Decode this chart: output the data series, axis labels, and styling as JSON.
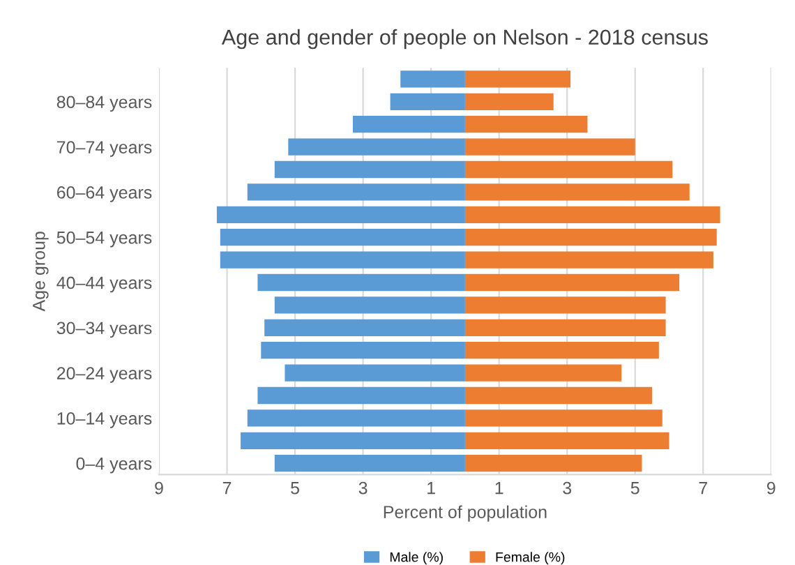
{
  "chart_data": {
    "type": "bar",
    "orientation": "horizontal",
    "stacked": true,
    "title": "Age and gender of people on Nelson - 2018 census",
    "xlabel": "Percent of population",
    "ylabel": "Age group",
    "categories": [
      null,
      "80–84 years",
      null,
      "70–74 years",
      null,
      "60–64 years",
      null,
      "50–54 years",
      null,
      "40–44 years",
      null,
      "30–34 years",
      null,
      "20–24 years",
      null,
      "10–14 years",
      null,
      "0–4 years"
    ],
    "series": [
      {
        "name": "Male (%)",
        "color": "#5b9bd5",
        "values": [
          -1.9,
          -2.2,
          -3.3,
          -5.2,
          -5.6,
          -6.4,
          -7.3,
          -7.2,
          -7.2,
          -6.1,
          -5.6,
          -5.9,
          -6.0,
          -5.3,
          -6.1,
          -6.4,
          -6.6,
          -5.6
        ]
      },
      {
        "name": "Female (%)",
        "color": "#ed7d31",
        "values": [
          3.1,
          2.6,
          3.6,
          5.0,
          6.1,
          6.6,
          7.5,
          7.4,
          7.3,
          6.3,
          5.9,
          5.9,
          5.7,
          4.6,
          5.5,
          5.8,
          6.0,
          5.2
        ]
      }
    ],
    "xlim": [
      -9,
      9
    ],
    "xticks": [
      {
        "value": -9,
        "label": "9"
      },
      {
        "value": -7,
        "label": "7"
      },
      {
        "value": -5,
        "label": "5"
      },
      {
        "value": -3,
        "label": "3"
      },
      {
        "value": -1,
        "label": "1"
      },
      1,
      3,
      5,
      7,
      9
    ],
    "grid": "x",
    "legend": "bottom"
  }
}
